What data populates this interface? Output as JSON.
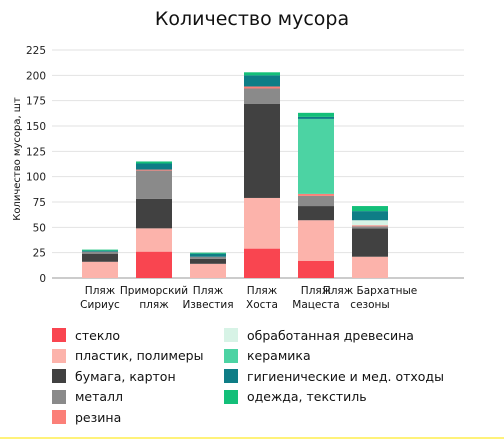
{
  "chart_data": {
    "type": "bar",
    "stacked": true,
    "title": "Количество мусора",
    "ylabel": "Количество мусора, шт",
    "xlabel": "",
    "ylim": [
      0,
      225
    ],
    "yticks": [
      0,
      25,
      50,
      75,
      100,
      125,
      150,
      175,
      200,
      225
    ],
    "grid": true,
    "legend_position": "bottom",
    "categories": [
      [
        "Пляж",
        "Сириус"
      ],
      [
        "Приморский",
        "пляж"
      ],
      [
        "Пляж",
        "Известия"
      ],
      [
        "Пляж",
        "Хоста"
      ],
      [
        "Пляж",
        "Мацеста"
      ],
      [
        "Пляж Бархатные",
        "сезоны"
      ]
    ],
    "series": [
      {
        "name": "стекло",
        "color": "#f94550",
        "values": [
          0,
          26,
          0,
          29,
          17,
          0
        ]
      },
      {
        "name": "пластик, полимеры",
        "color": "#fcb3ab",
        "values": [
          16,
          23,
          14,
          50,
          40,
          21
        ]
      },
      {
        "name": "бумага, картон",
        "color": "#414141",
        "values": [
          8,
          29,
          5,
          93,
          14,
          28
        ]
      },
      {
        "name": "металл",
        "color": "#8a8a8a",
        "values": [
          2,
          28,
          2,
          15,
          10,
          2
        ]
      },
      {
        "name": "резина",
        "color": "#fb7f78",
        "values": [
          0,
          1,
          0,
          2,
          2,
          1
        ]
      },
      {
        "name": "обработанная древесина",
        "color": "#d7f3e6",
        "values": [
          0,
          0,
          0,
          0,
          0,
          5
        ]
      },
      {
        "name": "керамика",
        "color": "#4cd3a3",
        "values": [
          0,
          0,
          0,
          0,
          74,
          0
        ]
      },
      {
        "name": "гигиенические и мед. отходы",
        "color": "#0e7d86",
        "values": [
          1,
          6,
          3,
          11,
          2,
          9
        ]
      },
      {
        "name": "одежда, текстиль",
        "color": "#13bf79",
        "values": [
          1,
          2,
          1,
          3,
          4,
          5
        ]
      }
    ]
  }
}
